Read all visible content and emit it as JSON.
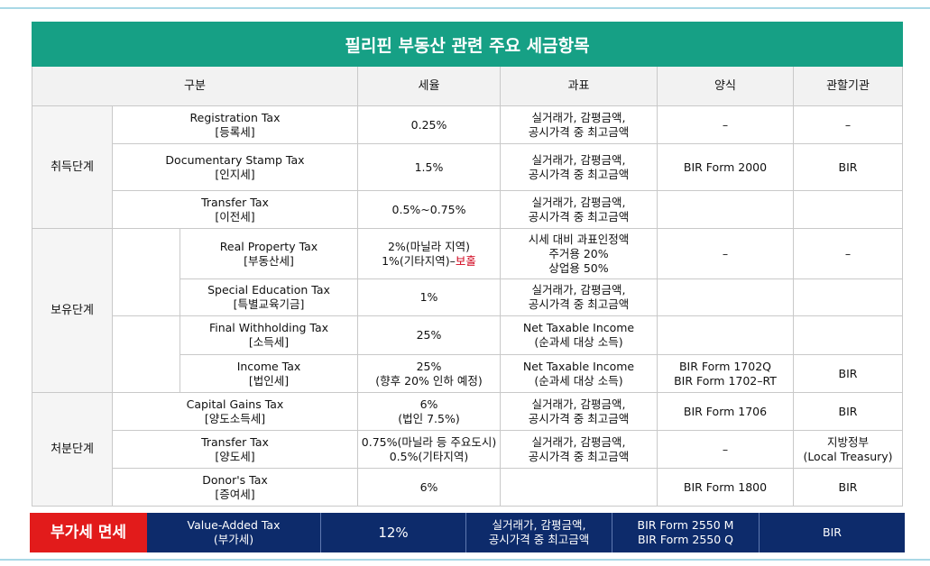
{
  "title": "필리핀 부동산 관련 주요 세금항목",
  "headers": {
    "category": "구분",
    "rate": "세율",
    "base": "과표",
    "form": "양식",
    "agency": "관할기관"
  },
  "stages": {
    "acquisition": "취득단계",
    "holding": "보유단계",
    "disposal": "처분단계"
  },
  "rows": {
    "registration": {
      "name": "Registration Tax",
      "name_ko": "[등록세]",
      "rate": "0.25%",
      "base1": "실거래가, 감평금액,",
      "base2": "공시가격 중 최고금액",
      "form": "–",
      "agency": "–"
    },
    "documentary": {
      "name": "Documentary Stamp Tax",
      "name_ko": "[인지세]",
      "rate": "1.5%",
      "base1": "실거래가, 감평금액,",
      "base2": "공시가격 중 최고금액",
      "form": "BIR Form 2000",
      "agency": "BIR"
    },
    "transfer_acq": {
      "name": "Transfer Tax",
      "name_ko": "[이전세]",
      "rate": "0.5%~0.75%",
      "base1": "실거래가, 감평금액,",
      "base2": "공시가격 중 최고금액"
    },
    "real_property": {
      "name": "Real Property Tax",
      "name_ko": "[부동산세]",
      "rate1": "2%(마닐라 지역)",
      "rate2_prefix": "1%(기타지역)–",
      "rate2_highlight": "보홀",
      "base1": "시세 대비 과표인정액",
      "base2": "주거용 20%",
      "base3": "상업용 50%",
      "form": "–",
      "agency": "–"
    },
    "special_edu": {
      "name": "Special Education Tax",
      "name_ko": "[특별교육기금]",
      "rate": "1%",
      "base1": "실거래가, 감평금액,",
      "base2": "공시가격 중 최고금액"
    },
    "final_withholding": {
      "name": "Final Withholding Tax",
      "name_ko": "[소득세]",
      "rate": "25%",
      "base1": "Net Taxable Income",
      "base2": "(순과세 대상 소득)"
    },
    "income": {
      "name": "Income Tax",
      "name_ko": "[법인세]",
      "rate1": "25%",
      "rate2": "(향후 20% 인하 예정)",
      "base1": "Net Taxable Income",
      "base2": "(순과세 대상 소득)",
      "form1": "BIR Form 1702Q",
      "form2": "BIR Form 1702–RT",
      "agency": "BIR"
    },
    "capital_gains": {
      "name": "Capital Gains Tax",
      "name_ko": "[양도소득세]",
      "rate1": "6%",
      "rate2": "(법인 7.5%)",
      "base1": "실거래가, 감평금액,",
      "base2": "공시가격 중 최고금액",
      "form": "BIR Form 1706",
      "agency": "BIR"
    },
    "transfer_disp": {
      "name": "Transfer Tax",
      "name_ko": "[양도세]",
      "rate1": "0.75%(마닐라 등 주요도시)",
      "rate2": "0.5%(기타지역)",
      "base1": "실거래가, 감평금액,",
      "base2": "공시가격 중 최고금액",
      "form": "–",
      "agency1": "지방정부",
      "agency2": "(Local Treasury)"
    },
    "donor": {
      "name": "Donor's Tax",
      "name_ko": "[증여세]",
      "rate": "6%",
      "form": "BIR Form 1800",
      "agency": "BIR"
    }
  },
  "vat": {
    "label": "부가세 면세",
    "name": "Value-Added Tax",
    "name_ko": "(부가세)",
    "rate": "12%",
    "base1": "실거래가, 감평금액,",
    "base2": "공시가격 중 최고금액",
    "form1": "BIR Form 2550 M",
    "form2": "BIR Form 2550 Q",
    "agency": "BIR"
  }
}
